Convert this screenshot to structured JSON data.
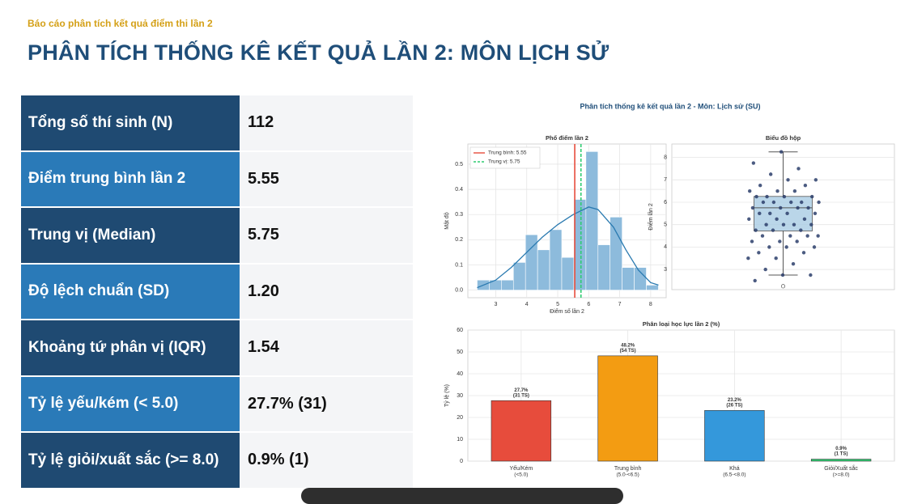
{
  "header": {
    "subtitle": "Báo cáo phân tích kết quả điểm thi lần 2",
    "title": "PHÂN TÍCH THỐNG KÊ KẾT QUẢ LẦN 2: MÔN LỊCH SỬ"
  },
  "table": {
    "rows": [
      [
        "Tổng số thí sinh (N)",
        "112"
      ],
      [
        "Điểm trung bình lần 2",
        "5.55"
      ],
      [
        "Trung vị (Median)",
        "5.75"
      ],
      [
        "Độ lệch chuẩn (SD)",
        "1.20"
      ],
      [
        "Khoảng tứ phân vị (IQR)",
        "1.54"
      ],
      [
        "Tỷ lệ yếu/kém (< 5.0)",
        "27.7% (31)"
      ],
      [
        "Tỷ lệ giỏi/xuất sắc (>= 8.0)",
        "0.9% (1)"
      ]
    ]
  },
  "figure": {
    "title": "Phân tích thống kê kết quả lần 2 - Môn: Lịch sử (SU)"
  },
  "chart_data": [
    {
      "type": "histogram",
      "title": "Phổ điểm lần 2",
      "x_label": "Điểm số lần 2",
      "y_label": "Mật độ",
      "bins": [
        2.4,
        2.79,
        3.18,
        3.57,
        3.96,
        4.35,
        4.74,
        5.13,
        5.52,
        5.91,
        6.3,
        6.69,
        7.08,
        7.47,
        7.86,
        8.25
      ],
      "values": [
        0.04,
        0.04,
        0.04,
        0.11,
        0.22,
        0.16,
        0.24,
        0.13,
        0.36,
        0.55,
        0.18,
        0.29,
        0.09,
        0.09,
        0.02
      ],
      "color": "#8dbbdc",
      "kde": {
        "color": "#2a7ab0",
        "x": [
          2.4,
          3.0,
          3.5,
          4.0,
          4.5,
          5.0,
          5.5,
          6.0,
          6.3,
          6.8,
          7.2,
          7.6,
          8.0,
          8.25
        ],
        "y": [
          0.01,
          0.04,
          0.09,
          0.15,
          0.21,
          0.26,
          0.3,
          0.33,
          0.32,
          0.25,
          0.16,
          0.08,
          0.03,
          0.02
        ]
      },
      "lines": [
        {
          "name": "Trung bình: 5.55",
          "value": 5.55,
          "color": "#e74c3c",
          "dashed": false
        },
        {
          "name": "Trung vị: 5.75",
          "value": 5.75,
          "color": "#2ecc71",
          "dashed": true
        }
      ],
      "xlim": [
        2.1,
        8.5
      ],
      "ylim": [
        -0.03,
        0.58
      ],
      "xticks": [
        3,
        4,
        5,
        6,
        7,
        8
      ],
      "yticks": [
        {
          "value": 0,
          "label": "0.0"
        },
        0.1,
        0.2,
        0.3,
        0.4,
        0.5
      ],
      "grid": true
    },
    {
      "type": "box",
      "title": "Biểu đồ hộp",
      "y_label": "Điểm lần 2",
      "q1": 4.72,
      "median": 5.75,
      "q3": 6.26,
      "whisker_low": 2.75,
      "whisker_high": 8.25,
      "outliers": [
        2.25
      ],
      "box_color": "#a9cce3",
      "point_color": "#2c3e6b",
      "points": [
        2.5,
        2.75,
        2.75,
        3.0,
        3.25,
        3.5,
        3.5,
        3.75,
        3.75,
        4.0,
        4.0,
        4.0,
        4.25,
        4.25,
        4.25,
        4.5,
        4.5,
        4.5,
        4.5,
        4.75,
        4.75,
        4.75,
        5.0,
        5.0,
        5.0,
        5.0,
        5.25,
        5.25,
        5.25,
        5.5,
        5.5,
        5.5,
        5.5,
        5.75,
        5.75,
        5.75,
        5.75,
        6.0,
        6.0,
        6.0,
        6.0,
        6.0,
        6.25,
        6.25,
        6.25,
        6.25,
        6.5,
        6.5,
        6.5,
        6.75,
        6.75,
        7.0,
        7.0,
        7.25,
        7.5,
        7.75,
        8.25
      ],
      "ylim": [
        2.1,
        8.6
      ],
      "yticks": [
        3,
        4,
        5,
        6,
        7,
        8
      ],
      "grid": true
    },
    {
      "type": "bar",
      "title": "Phân loại học lực lần 2 (%)",
      "y_label": "Tỷ lệ (%)",
      "categories": [
        "Yếu/Kém",
        "Trung bình",
        "Khá",
        "Giỏi/Xuất sắc"
      ],
      "sublabels": [
        "(<5.0)",
        "(5.0-<6.5)",
        "(6.5-<8.0)",
        "(>=8.0)"
      ],
      "values": [
        27.7,
        48.2,
        23.2,
        0.9
      ],
      "value_labels": [
        "27.7%",
        "48.2%",
        "23.2%",
        "0.9%"
      ],
      "count_labels": [
        "(31 TS)",
        "(54 TS)",
        "(26 TS)",
        "(1 TS)"
      ],
      "colors": [
        "#e74c3c",
        "#f39c12",
        "#3498db",
        "#2ecc71"
      ],
      "ylim": [
        0,
        60
      ],
      "yticks": [
        0,
        10,
        20,
        30,
        40,
        50,
        60
      ],
      "grid": true
    }
  ]
}
